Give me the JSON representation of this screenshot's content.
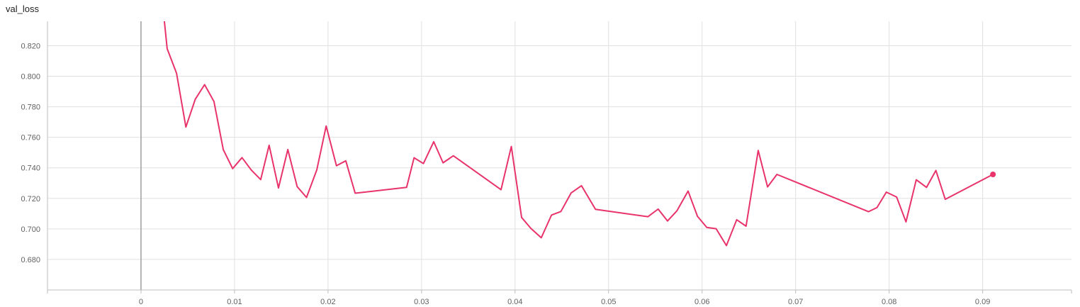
{
  "chart_data": {
    "type": "line",
    "title": "val_loss",
    "xlabel": "",
    "ylabel": "",
    "xlim": [
      -0.01,
      0.0995
    ],
    "ylim": [
      0.66,
      0.836
    ],
    "grid": true,
    "colors": {
      "line": "#e8336b",
      "grid": "#e0e0e0",
      "axis": "#bdbdbd",
      "zero_line": "#9e9e9e",
      "tick_text": "#616161"
    },
    "x_ticks": [
      0,
      0.01,
      0.02,
      0.03,
      0.04,
      0.05,
      0.06,
      0.07,
      0.08,
      0.09
    ],
    "x_tick_labels": [
      "0",
      "0.01",
      "0.02",
      "0.03",
      "0.04",
      "0.05",
      "0.06",
      "0.07",
      "0.08",
      "0.09"
    ],
    "y_ticks": [
      0.68,
      0.7,
      0.72,
      0.74,
      0.76,
      0.78,
      0.8,
      0.82
    ],
    "y_tick_labels": [
      "0.680",
      "0.700",
      "0.720",
      "0.740",
      "0.760",
      "0.780",
      "0.800",
      "0.820"
    ],
    "series": [
      {
        "x": [
          0.0025,
          0.0028,
          0.0038,
          0.0048,
          0.0058,
          0.0068,
          0.0078,
          0.0088,
          0.0098,
          0.0108,
          0.0118,
          0.0128,
          0.0137,
          0.0147,
          0.0157,
          0.0167,
          0.0177,
          0.0188,
          0.0198,
          0.0209,
          0.0219,
          0.0229,
          0.0284,
          0.0292,
          0.0302,
          0.0313,
          0.0323,
          0.0334,
          0.0385,
          0.0396,
          0.0407,
          0.0417,
          0.0428,
          0.0439,
          0.0449,
          0.046,
          0.0471,
          0.0486,
          0.0542,
          0.0553,
          0.0563,
          0.0573,
          0.0585,
          0.0595,
          0.0605,
          0.0615,
          0.0626,
          0.0637,
          0.0647,
          0.066,
          0.067,
          0.068,
          0.0778,
          0.0787,
          0.0797,
          0.0808,
          0.0818,
          0.0829,
          0.084,
          0.085,
          0.086,
          0.0911
        ],
        "y": [
          0.836,
          0.818,
          0.802,
          0.7667,
          0.7849,
          0.7945,
          0.7835,
          0.7519,
          0.7395,
          0.7467,
          0.7385,
          0.7323,
          0.7548,
          0.7268,
          0.752,
          0.7277,
          0.7206,
          0.7387,
          0.7674,
          0.7414,
          0.7446,
          0.7234,
          0.7272,
          0.7466,
          0.7428,
          0.7571,
          0.7433,
          0.7479,
          0.7257,
          0.754,
          0.7075,
          0.7003,
          0.6942,
          0.7091,
          0.7114,
          0.7236,
          0.7283,
          0.7128,
          0.708,
          0.713,
          0.7052,
          0.7118,
          0.7248,
          0.7083,
          0.701,
          0.7001,
          0.6891,
          0.706,
          0.7018,
          0.7514,
          0.7275,
          0.7357,
          0.7113,
          0.714,
          0.7241,
          0.7209,
          0.7046,
          0.7322,
          0.7272,
          0.7383,
          0.7194,
          0.7357
        ]
      }
    ]
  }
}
